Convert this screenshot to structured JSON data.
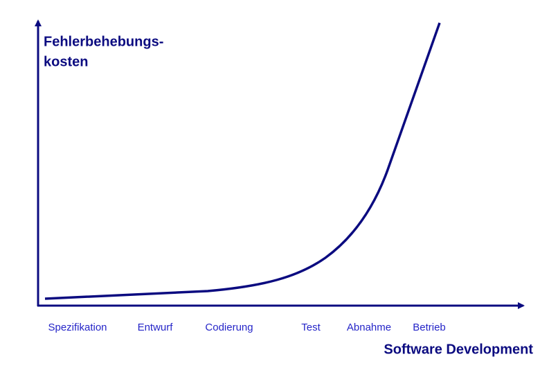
{
  "y_label": [
    "Fehlerbehebungs-",
    "kosten"
  ],
  "x_label": "Software Development",
  "phases": [
    "Spezifikation",
    "Entwurf",
    "Codierung",
    "Test",
    "Abnahme",
    "Betrieb"
  ]
}
